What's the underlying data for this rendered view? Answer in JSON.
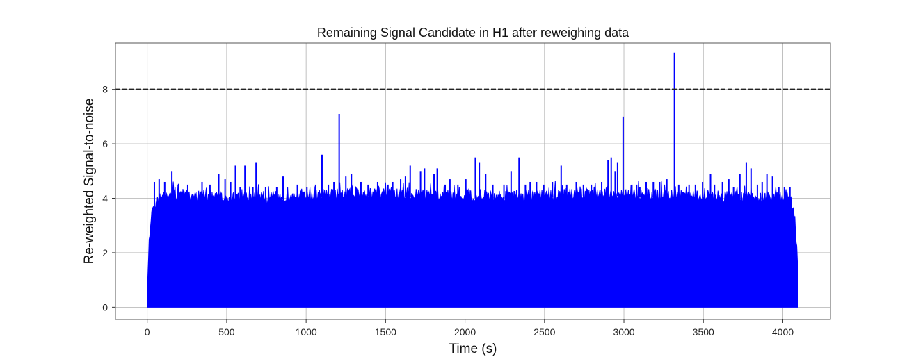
{
  "chart_data": {
    "type": "line",
    "title": "Remaining Signal Candidate in H1 after reweighing data",
    "xlabel": "Time (s)",
    "ylabel": "Re-weighted Signal-to-noise",
    "xlim": [
      -200,
      4300
    ],
    "ylim": [
      -0.45,
      9.7
    ],
    "x_ticks": [
      0,
      500,
      1000,
      1500,
      2000,
      2500,
      3000,
      3500,
      4000
    ],
    "x_tick_labels": [
      "0",
      "500",
      "1000",
      "1500",
      "2000",
      "2500",
      "3000",
      "3500",
      "4000"
    ],
    "y_ticks": [
      0,
      2,
      4,
      6,
      8
    ],
    "y_tick_labels": [
      "0",
      "2",
      "4",
      "6",
      "8"
    ],
    "grid": true,
    "threshold": {
      "y": 8,
      "style": "dashed",
      "color": "#222222"
    },
    "series": [
      {
        "color": "#0000ff",
        "x_range": [
          0,
          4096
        ],
        "lower": 0,
        "upper_envelope": {
          "x": [
            0,
            10,
            25,
            40,
            60,
            100,
            200,
            400,
            700,
            1000,
            1300,
            1600,
            2000,
            2400,
            2800,
            3200,
            3600,
            3900,
            4050,
            4075,
            4088,
            4096
          ],
          "y": [
            0.5,
            2.5,
            3.6,
            3.9,
            4.1,
            4.3,
            4.35,
            4.3,
            4.25,
            4.3,
            4.4,
            4.35,
            4.3,
            4.3,
            4.4,
            4.35,
            4.3,
            4.25,
            4.2,
            3.5,
            2.5,
            1.0
          ]
        },
        "peaks": [
          {
            "x": 45,
            "y": 4.6
          },
          {
            "x": 75,
            "y": 4.7
          },
          {
            "x": 110,
            "y": 4.6
          },
          {
            "x": 155,
            "y": 5.0
          },
          {
            "x": 195,
            "y": 4.5
          },
          {
            "x": 255,
            "y": 4.5
          },
          {
            "x": 345,
            "y": 4.6
          },
          {
            "x": 395,
            "y": 4.5
          },
          {
            "x": 450,
            "y": 4.9
          },
          {
            "x": 490,
            "y": 4.7
          },
          {
            "x": 525,
            "y": 4.6
          },
          {
            "x": 555,
            "y": 5.2
          },
          {
            "x": 585,
            "y": 4.4
          },
          {
            "x": 615,
            "y": 5.2
          },
          {
            "x": 665,
            "y": 4.4
          },
          {
            "x": 685,
            "y": 5.3
          },
          {
            "x": 745,
            "y": 4.4
          },
          {
            "x": 815,
            "y": 4.4
          },
          {
            "x": 855,
            "y": 4.8
          },
          {
            "x": 945,
            "y": 4.5
          },
          {
            "x": 1005,
            "y": 4.4
          },
          {
            "x": 1060,
            "y": 4.5
          },
          {
            "x": 1100,
            "y": 5.6
          },
          {
            "x": 1140,
            "y": 4.5
          },
          {
            "x": 1175,
            "y": 4.6
          },
          {
            "x": 1208,
            "y": 7.1
          },
          {
            "x": 1250,
            "y": 4.8
          },
          {
            "x": 1285,
            "y": 4.9
          },
          {
            "x": 1345,
            "y": 4.6
          },
          {
            "x": 1390,
            "y": 4.5
          },
          {
            "x": 1450,
            "y": 4.6
          },
          {
            "x": 1515,
            "y": 4.5
          },
          {
            "x": 1545,
            "y": 4.6
          },
          {
            "x": 1595,
            "y": 4.7
          },
          {
            "x": 1625,
            "y": 4.8
          },
          {
            "x": 1655,
            "y": 5.2
          },
          {
            "x": 1720,
            "y": 5.0
          },
          {
            "x": 1745,
            "y": 5.1
          },
          {
            "x": 1805,
            "y": 4.9
          },
          {
            "x": 1825,
            "y": 5.1
          },
          {
            "x": 1875,
            "y": 4.5
          },
          {
            "x": 1905,
            "y": 4.7
          },
          {
            "x": 1955,
            "y": 4.5
          },
          {
            "x": 2005,
            "y": 4.7
          },
          {
            "x": 2065,
            "y": 5.5
          },
          {
            "x": 2090,
            "y": 5.3
          },
          {
            "x": 2130,
            "y": 4.9
          },
          {
            "x": 2175,
            "y": 4.5
          },
          {
            "x": 2245,
            "y": 4.5
          },
          {
            "x": 2290,
            "y": 5.0
          },
          {
            "x": 2340,
            "y": 5.5
          },
          {
            "x": 2380,
            "y": 4.5
          },
          {
            "x": 2410,
            "y": 4.6
          },
          {
            "x": 2450,
            "y": 4.6
          },
          {
            "x": 2495,
            "y": 4.5
          },
          {
            "x": 2550,
            "y": 4.6
          },
          {
            "x": 2605,
            "y": 5.2
          },
          {
            "x": 2640,
            "y": 4.5
          },
          {
            "x": 2700,
            "y": 4.6
          },
          {
            "x": 2745,
            "y": 4.5
          },
          {
            "x": 2795,
            "y": 4.5
          },
          {
            "x": 2860,
            "y": 4.6
          },
          {
            "x": 2900,
            "y": 5.4
          },
          {
            "x": 2920,
            "y": 5.5
          },
          {
            "x": 2945,
            "y": 5.0
          },
          {
            "x": 2960,
            "y": 5.3
          },
          {
            "x": 2995,
            "y": 7.0
          },
          {
            "x": 3050,
            "y": 4.5
          },
          {
            "x": 3080,
            "y": 4.5
          },
          {
            "x": 3100,
            "y": 4.4
          },
          {
            "x": 3140,
            "y": 4.6
          },
          {
            "x": 3185,
            "y": 4.6
          },
          {
            "x": 3225,
            "y": 4.6
          },
          {
            "x": 3270,
            "y": 4.7
          },
          {
            "x": 3318,
            "y": 9.35
          },
          {
            "x": 3345,
            "y": 4.5
          },
          {
            "x": 3410,
            "y": 4.5
          },
          {
            "x": 3450,
            "y": 4.5
          },
          {
            "x": 3495,
            "y": 4.6
          },
          {
            "x": 3545,
            "y": 4.9
          },
          {
            "x": 3570,
            "y": 4.5
          },
          {
            "x": 3620,
            "y": 4.6
          },
          {
            "x": 3660,
            "y": 4.7
          },
          {
            "x": 3690,
            "y": 4.4
          },
          {
            "x": 3730,
            "y": 4.9
          },
          {
            "x": 3770,
            "y": 5.3
          },
          {
            "x": 3800,
            "y": 5.1
          },
          {
            "x": 3840,
            "y": 4.5
          },
          {
            "x": 3870,
            "y": 4.6
          },
          {
            "x": 3900,
            "y": 4.9
          },
          {
            "x": 3935,
            "y": 4.8
          },
          {
            "x": 3975,
            "y": 4.4
          },
          {
            "x": 4010,
            "y": 4.4
          },
          {
            "x": 4045,
            "y": 4.4
          }
        ]
      }
    ]
  },
  "colors": {
    "series": "#0000ff",
    "grid": "#b0b0b0",
    "axes": "#333333",
    "threshold": "#222222"
  }
}
